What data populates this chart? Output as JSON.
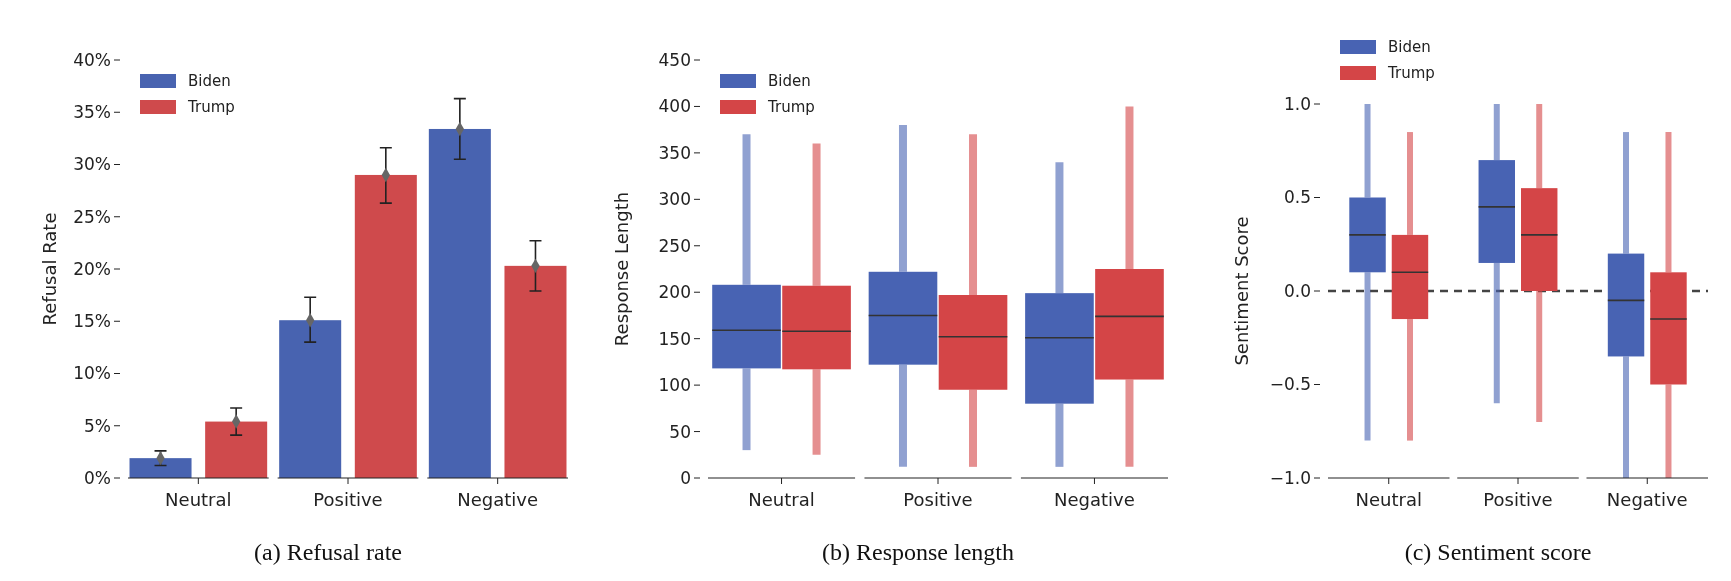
{
  "chart_data": [
    {
      "type": "bar",
      "title": "(a) Refusal rate",
      "ylabel": "Refusal Rate",
      "categories": [
        "Neutral",
        "Positive",
        "Negative"
      ],
      "ylim": [
        0,
        40
      ],
      "yticks": [
        {
          "value": 0,
          "label": "0%"
        },
        {
          "value": 5,
          "label": "5%"
        },
        {
          "value": 10,
          "label": "10%"
        },
        {
          "value": 15,
          "label": "15%"
        },
        {
          "value": 20,
          "label": "20%"
        },
        {
          "value": 25,
          "label": "25%"
        },
        {
          "value": 30,
          "label": "30%"
        },
        {
          "value": 35,
          "label": "35%"
        },
        {
          "value": 40,
          "label": "40%"
        }
      ],
      "legend": "top left",
      "marker": "diamond",
      "series": [
        {
          "name": "Biden",
          "color": "#4863b0",
          "values": [
            1.9,
            15.1,
            33.4
          ],
          "errors": [
            [
              1.2,
              2.6
            ],
            [
              13.0,
              17.3
            ],
            [
              30.5,
              36.3
            ]
          ]
        },
        {
          "name": "Trump",
          "color": "#cf4a4c",
          "values": [
            5.4,
            29.0,
            20.3
          ],
          "errors": [
            [
              4.1,
              6.7
            ],
            [
              26.3,
              31.6
            ],
            [
              17.9,
              22.7
            ]
          ]
        },
        {
          "type": "scatter",
          "color": "#666666",
          "x": [
            "Neutral",
            "Positive",
            "Negative"
          ],
          "values": [
            1.9,
            15.1,
            33.4
          ]
        },
        {
          "type": "scatter",
          "color": "#666666",
          "x": [
            "Neutral",
            "Positive",
            "Negative"
          ],
          "values": [
            5.4,
            29.0,
            20.3
          ]
        }
      ]
    },
    {
      "type": "box",
      "title": "(b) Response length",
      "ylabel": "Response Length",
      "categories": [
        "Neutral",
        "Positive",
        "Negative"
      ],
      "ylim": [
        0,
        450
      ],
      "yticks": [
        0,
        50,
        100,
        150,
        200,
        250,
        300,
        350,
        400,
        450
      ],
      "legend": "top left",
      "series": [
        {
          "name": "Biden",
          "color": "#4863b3",
          "boxes": [
            {
              "low": 30,
              "q1": 118,
              "median": 159,
              "q3": 208,
              "high": 370
            },
            {
              "low": 12,
              "q1": 122,
              "median": 175,
              "q3": 222,
              "high": 380
            },
            {
              "low": 12,
              "q1": 80,
              "median": 151,
              "q3": 199,
              "high": 340
            }
          ]
        },
        {
          "name": "Trump",
          "color": "#d44547",
          "boxes": [
            {
              "low": 25,
              "q1": 117,
              "median": 158,
              "q3": 207,
              "high": 360
            },
            {
              "low": 12,
              "q1": 95,
              "median": 152,
              "q3": 197,
              "high": 370
            },
            {
              "low": 12,
              "q1": 106,
              "median": 174,
              "q3": 225,
              "high": 400
            }
          ]
        }
      ]
    },
    {
      "type": "box",
      "title": "(c) Sentiment score",
      "ylabel": "Sentiment Score",
      "categories": [
        "Neutral",
        "Positive",
        "Negative"
      ],
      "ylim": [
        -1,
        1
      ],
      "yticks": [
        {
          "value": -1,
          "label": "−1.0"
        },
        {
          "value": -0.5,
          "label": "−0.5"
        },
        {
          "value": 0,
          "label": "0.0"
        },
        {
          "value": 0.5,
          "label": "0.5"
        },
        {
          "value": 1,
          "label": "1.0"
        }
      ],
      "legend": "top left",
      "ref_lines": [
        {
          "axis": "y",
          "value": 0,
          "color": "#444444",
          "line_style": "dashed"
        }
      ],
      "series": [
        {
          "name": "Biden",
          "color": "#4863b3",
          "boxes": [
            {
              "low": -0.8,
              "q1": 0.1,
              "median": 0.3,
              "q3": 0.5,
              "high": 1.0
            },
            {
              "low": -0.6,
              "q1": 0.15,
              "median": 0.45,
              "q3": 0.7,
              "high": 1.0
            },
            {
              "low": -1.0,
              "q1": -0.35,
              "median": -0.05,
              "q3": 0.2,
              "high": 0.85
            }
          ]
        },
        {
          "name": "Trump",
          "color": "#d44547",
          "boxes": [
            {
              "low": -0.8,
              "q1": -0.15,
              "median": 0.1,
              "q3": 0.3,
              "high": 0.85
            },
            {
              "low": -0.7,
              "q1": 0.0,
              "median": 0.3,
              "q3": 0.55,
              "high": 1.0
            },
            {
              "low": -1.0,
              "q1": -0.5,
              "median": -0.15,
              "q3": 0.1,
              "high": 0.85
            }
          ]
        }
      ]
    }
  ]
}
